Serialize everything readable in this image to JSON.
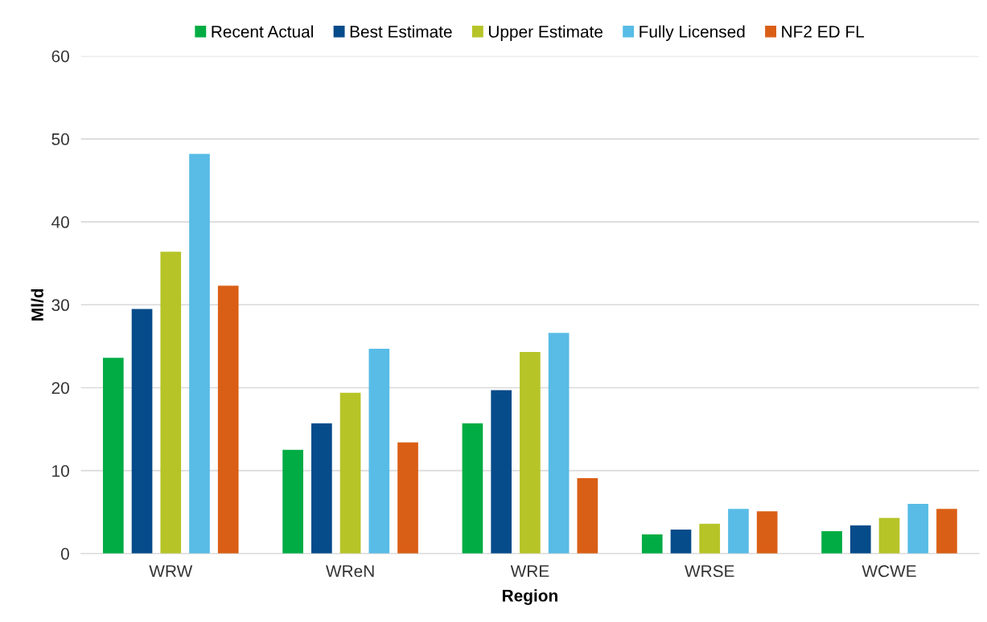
{
  "chart_data": {
    "type": "bar",
    "xlabel": "Region",
    "ylabel": "Ml/d",
    "categories": [
      "WRW",
      "WReN",
      "WRE",
      "WRSE",
      "WCWE"
    ],
    "series": [
      {
        "name": "Recent Actual",
        "color": "#00ac43",
        "values": [
          23.6,
          12.5,
          15.7,
          2.3,
          2.7
        ]
      },
      {
        "name": "Best Estimate",
        "color": "#064b8a",
        "values": [
          29.5,
          15.7,
          19.7,
          2.9,
          3.4
        ]
      },
      {
        "name": "Upper Estimate",
        "color": "#b6c427",
        "values": [
          36.4,
          19.4,
          24.3,
          3.6,
          4.3
        ]
      },
      {
        "name": "Fully Licensed",
        "color": "#58bce6",
        "values": [
          48.2,
          24.7,
          26.6,
          5.4,
          6.0
        ]
      },
      {
        "name": "NF2 ED FL",
        "color": "#da5f16",
        "values": [
          32.3,
          13.4,
          9.1,
          5.1,
          5.4
        ]
      }
    ],
    "ylim": [
      0,
      60
    ],
    "yticks": [
      0,
      10,
      20,
      30,
      40,
      50,
      60
    ],
    "grid": "y",
    "legend": "top"
  }
}
